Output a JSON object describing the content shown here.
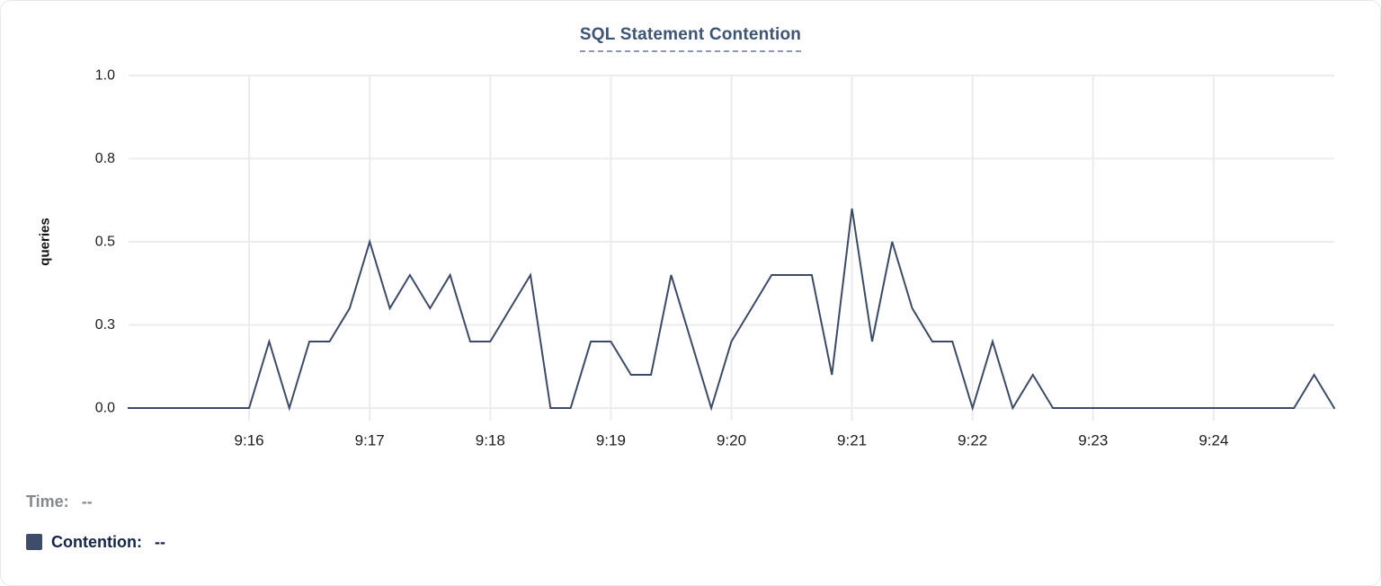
{
  "card": {
    "title": "SQL Statement Contention"
  },
  "legend": {
    "time_label": "Time:",
    "time_value": "--",
    "contention_label": "Contention:",
    "contention_value": "--",
    "swatch_color": "#3e4d6c"
  },
  "colors": {
    "title_text": "#3d5477",
    "title_underline": "#8d96c3",
    "line": "#3b4a69",
    "grid": "#ececee",
    "axis_text": "#1d1d1f",
    "axis_title_text": "#111111",
    "time_text": "#84888e",
    "contention_text": "#14244a",
    "card_border": "#e8e8ea"
  },
  "chart_data": {
    "type": "line",
    "title": "SQL Statement Contention",
    "xlabel": "",
    "ylabel": "queries",
    "ylim": [
      0,
      1
    ],
    "x_range": [
      "9:15:00",
      "9:25:00"
    ],
    "x_interval_seconds": 10,
    "grid": true,
    "legend_position": "bottom-left",
    "y_ticks": [
      {
        "value": 0.0,
        "label": "0.0"
      },
      {
        "value": 0.25,
        "label": "0.3"
      },
      {
        "value": 0.5,
        "label": "0.5"
      },
      {
        "value": 0.75,
        "label": "0.8"
      },
      {
        "value": 1.0,
        "label": "1.0"
      }
    ],
    "x_ticks": [
      {
        "time": "9:16:00",
        "label": "9:16"
      },
      {
        "time": "9:17:00",
        "label": "9:17"
      },
      {
        "time": "9:18:00",
        "label": "9:18"
      },
      {
        "time": "9:19:00",
        "label": "9:19"
      },
      {
        "time": "9:20:00",
        "label": "9:20"
      },
      {
        "time": "9:21:00",
        "label": "9:21"
      },
      {
        "time": "9:22:00",
        "label": "9:22"
      },
      {
        "time": "9:23:00",
        "label": "9:23"
      },
      {
        "time": "9:24:00",
        "label": "9:24"
      }
    ],
    "series": [
      {
        "name": "Contention",
        "color": "#3b4a69",
        "x_start": "9:15:00",
        "values": [
          0,
          0,
          0,
          0,
          0,
          0,
          0,
          0.2,
          0,
          0.2,
          0.2,
          0.3,
          0.5,
          0.3,
          0.4,
          0.3,
          0.4,
          0.2,
          0.2,
          0.3,
          0.4,
          0,
          0,
          0.2,
          0.2,
          0.1,
          0.1,
          0.4,
          0.2,
          0,
          0.2,
          0.3,
          0.4,
          0.4,
          0.4,
          0.1,
          0.6,
          0.2,
          0.5,
          0.3,
          0.2,
          0.2,
          0,
          0.2,
          0,
          0.1,
          0,
          0,
          0,
          0,
          0,
          0,
          0,
          0,
          0,
          0,
          0,
          0,
          0,
          0.1,
          0
        ]
      }
    ]
  }
}
